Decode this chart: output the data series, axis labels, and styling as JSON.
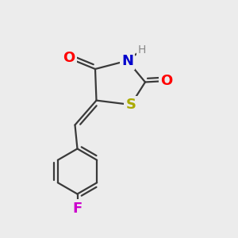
{
  "background_color": "#ececec",
  "bond_color": "#3a3a3a",
  "bond_width": 1.6,
  "atom_labels": [
    {
      "symbol": "O",
      "color": "#ff0000",
      "fontsize": 13,
      "bold": true
    },
    {
      "symbol": "N",
      "color": "#0000cc",
      "fontsize": 13,
      "bold": true
    },
    {
      "symbol": "H",
      "color": "#808080",
      "fontsize": 10,
      "bold": false
    },
    {
      "symbol": "S",
      "color": "#aaaa00",
      "fontsize": 13,
      "bold": true
    },
    {
      "symbol": "F",
      "color": "#cc00cc",
      "fontsize": 13,
      "bold": true
    }
  ]
}
